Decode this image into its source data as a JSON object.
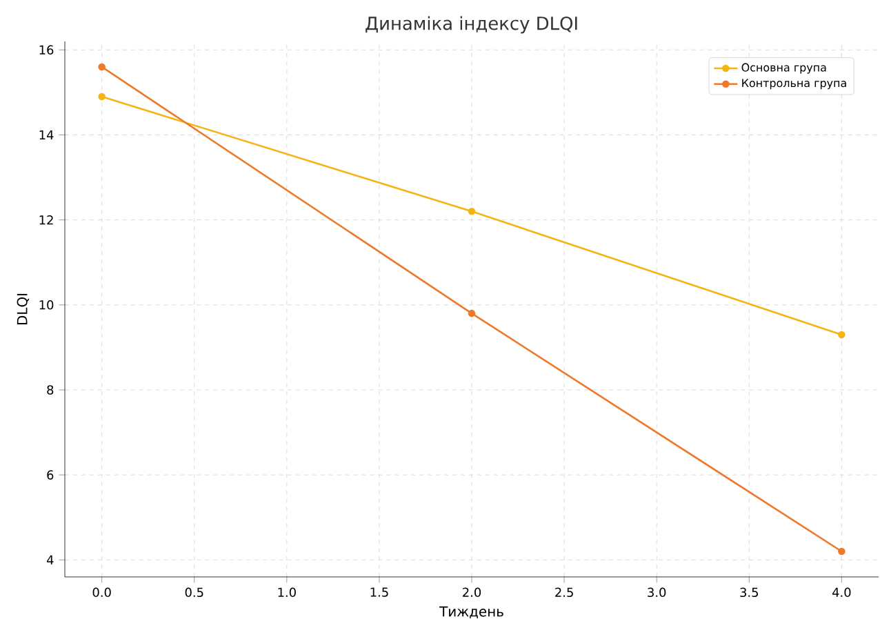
{
  "chart_data": {
    "type": "line",
    "title": "Динаміка індексу DLQI",
    "xlabel": "Тиждень",
    "ylabel": "DLQI",
    "x": [
      0,
      2,
      4
    ],
    "series": [
      {
        "name": "Основна група",
        "color": "#f5b414",
        "values": [
          14.9,
          12.2,
          9.3
        ]
      },
      {
        "name": "Контрольна група",
        "color": "#f0782a",
        "values": [
          15.6,
          9.8,
          4.2
        ]
      }
    ],
    "xlim": [
      -0.2,
      4.2
    ],
    "ylim": [
      3.6,
      16.2
    ],
    "xticks": [
      {
        "value": 0,
        "label": "0.0"
      },
      {
        "value": 0.5,
        "label": "0.5"
      },
      {
        "value": 1,
        "label": "1.0"
      },
      {
        "value": 1.5,
        "label": "1.5"
      },
      {
        "value": 2,
        "label": "2.0"
      },
      {
        "value": 2.5,
        "label": "2.5"
      },
      {
        "value": 3,
        "label": "3.0"
      },
      {
        "value": 3.5,
        "label": "3.5"
      },
      {
        "value": 4,
        "label": "4.0"
      }
    ],
    "yticks": [
      4,
      6,
      8,
      10,
      12,
      14,
      16
    ],
    "grid": true,
    "legend": "top right",
    "marker": "circle",
    "line_style": "solid"
  }
}
